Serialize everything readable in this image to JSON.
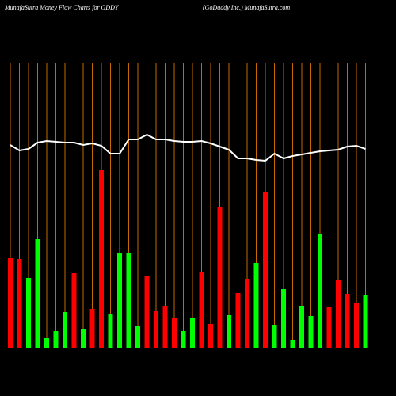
{
  "chart_data": {
    "type": "bar",
    "title": "MunafaSutra  Money Flow  Charts for GDDY",
    "subtitle": "(GoDaddy Inc.) MunafaSutra.com",
    "values": [
      114,
      113,
      89,
      138,
      13,
      22,
      46,
      95,
      24,
      50,
      225,
      43,
      121,
      121,
      28,
      91,
      47,
      54,
      38,
      22,
      39,
      97,
      31,
      179,
      42,
      70,
      88,
      108,
      198,
      30,
      75,
      11,
      54,
      41,
      145,
      53,
      86,
      69,
      57,
      67
    ],
    "colors": [
      "#ff0000",
      "#ff0000",
      "#00ff00",
      "#00ff00",
      "#00ff00",
      "#00ff00",
      "#00ff00",
      "#ff0000",
      "#00ff00",
      "#ff0000",
      "#ff0000",
      "#00ff00",
      "#00ff00",
      "#00ff00",
      "#00ff00",
      "#ff0000",
      "#ff0000",
      "#ff0000",
      "#ff0000",
      "#00ff00",
      "#00ff00",
      "#ff0000",
      "#ff0000",
      "#ff0000",
      "#00ff00",
      "#ff0000",
      "#ff0000",
      "#00ff00",
      "#ff0000",
      "#00ff00",
      "#00ff00",
      "#00ff00",
      "#00ff00",
      "#00ff00",
      "#00ff00",
      "#ff0000",
      "#ff0000",
      "#ff0000",
      "#ff0000",
      "#00ff00"
    ],
    "line": {
      "color": "#ffffff",
      "values": [
        257,
        250,
        252,
        260,
        262,
        261,
        260,
        260,
        257,
        259,
        256,
        246,
        246,
        264,
        264,
        270,
        264,
        264,
        262,
        261,
        261,
        262,
        259,
        255,
        251,
        240,
        240,
        238,
        237,
        246,
        240,
        243,
        245,
        247,
        249,
        250,
        251,
        255,
        256,
        252
      ]
    },
    "ylim": [
      0,
      360
    ],
    "grid_color": "#c46a00"
  }
}
